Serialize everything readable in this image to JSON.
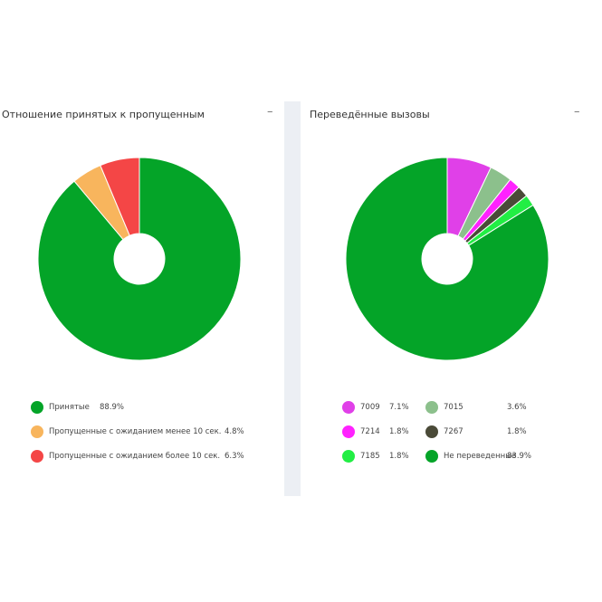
{
  "charts": {
    "left": {
      "title": "Отношение принятых к пропущенным",
      "collapse_label": "–"
    },
    "right": {
      "title": "Переведённые вызовы",
      "collapse_label": "–"
    }
  },
  "chart_data": [
    {
      "type": "pie",
      "title": "Отношение принятых к пропущенным",
      "donut": true,
      "legend_position": "bottom",
      "slices": [
        {
          "label": "Принятые",
          "value": 88.9,
          "value_label": "88.9%",
          "color": "#04a428"
        },
        {
          "label": "Пропущенные с ожиданием менее 10 сек.",
          "value": 4.8,
          "value_label": "4.8%",
          "color": "#f8b55d"
        },
        {
          "label": "Пропущенные с ожиданием более 10 сек.",
          "value": 6.3,
          "value_label": "6.3%",
          "color": "#f44646"
        }
      ]
    },
    {
      "type": "pie",
      "title": "Переведённые вызовы",
      "donut": true,
      "legend_position": "bottom",
      "slices": [
        {
          "label": "7009",
          "value": 7.1,
          "value_label": "7.1%",
          "color": "#e040e8"
        },
        {
          "label": "7015",
          "value": 3.6,
          "value_label": "3.6%",
          "color": "#8cc08c"
        },
        {
          "label": "7214",
          "value": 1.8,
          "value_label": "1.8%",
          "color": "#ff22ff"
        },
        {
          "label": "7267",
          "value": 1.8,
          "value_label": "1.8%",
          "color": "#4a4a38"
        },
        {
          "label": "7185",
          "value": 1.8,
          "value_label": "1.8%",
          "color": "#22ee44"
        },
        {
          "label": "Не переведенные",
          "value": 83.9,
          "value_label": "83.9%",
          "color": "#04a428"
        }
      ]
    }
  ]
}
